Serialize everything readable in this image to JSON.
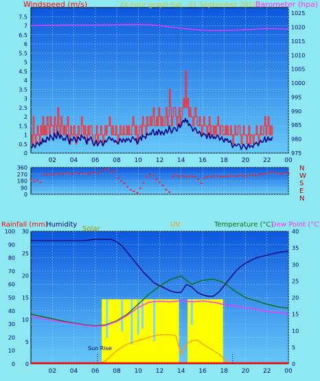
{
  "colors": {
    "background": "#8de8f2",
    "plot_top": "#0d58e0",
    "plot_bottom": "#66c8f8",
    "grid": "#9fd0ff",
    "wind_avg": "#000080",
    "wind_gust": "#ff2a2a",
    "barometer": "#ff33ff",
    "wind_dir": "#ff2020",
    "compass": "#b00000",
    "humidity": "#0a0a80",
    "solar_fill": "#ffff00",
    "solar_line": "#ffff00",
    "uv": "#ff9900",
    "temperature": "#107010",
    "dew_point": "#ff33ff",
    "rainfall": "#ff0000",
    "sun_marker": "#000000"
  },
  "header": {
    "title": "24 hour graph Sat , 01 September 2012",
    "wind_label": "Windspeed (m/s)",
    "baro_label": "Barometer (hpa)",
    "rain_label": "Rainfall (mm)",
    "humidity_label": "Humidity",
    "solar_label": "Solar",
    "uv_label": "UV",
    "temp_label": "Temperature (°C)",
    "dew_label": "Dew Point (°C)",
    "sunrise_label": "Sun Rise"
  },
  "chart_data": [
    {
      "type": "line",
      "name": "wind-and-barometer",
      "x_range": [
        0,
        24
      ],
      "x_ticks": [
        "02",
        "04",
        "06",
        "08",
        "10",
        "12",
        "14",
        "16",
        "18",
        "20",
        "22",
        "00"
      ],
      "left_axis": {
        "label": "Windspeed (m/s)",
        "range": [
          0,
          8
        ],
        "ticks": [
          "0",
          "0.5",
          "1",
          "1.5",
          "2",
          "2.5",
          "3",
          "3.5",
          "4",
          "4.5",
          "5",
          "5.5",
          "6",
          "6.5",
          "7",
          "7.5"
        ]
      },
      "right_axis": {
        "label": "Barometer (hpa)",
        "range": [
          975,
          1027
        ],
        "ticks": [
          "975",
          "980",
          "985",
          "990",
          "995",
          "1000",
          "1005",
          "1010",
          "1015",
          "1020",
          "1025"
        ]
      },
      "series": [
        {
          "role": "barometer",
          "x": [
            0,
            2,
            4,
            6,
            8,
            10,
            11,
            12,
            13,
            14,
            15,
            16,
            17,
            18,
            19,
            20,
            21,
            22,
            23,
            24
          ],
          "y": [
            1020.6,
            1020.7,
            1020.8,
            1020.8,
            1020.9,
            1021.0,
            1020.9,
            1020.5,
            1020.0,
            1019.6,
            1019.2,
            1018.9,
            1018.8,
            1018.8,
            1018.9,
            1019.1,
            1019.3,
            1019.5,
            1019.4,
            1019.3
          ]
        },
        {
          "role": "gust",
          "hours_start": 0,
          "hours_step": 0.1,
          "y": [
            1.0,
            0.5,
            2.0,
            1.0,
            0.5,
            1.0,
            1.5,
            1.0,
            0.5,
            1.5,
            1.0,
            2.0,
            1.0,
            1.5,
            1.0,
            2.0,
            1.5,
            1.0,
            2.0,
            1.5,
            1.5,
            1.0,
            2.0,
            1.5,
            1.0,
            2.5,
            1.5,
            1.0,
            2.0,
            1.5,
            1.0,
            1.5,
            1.0,
            1.5,
            2.0,
            1.0,
            0.5,
            1.5,
            1.0,
            1.0,
            1.5,
            1.0,
            0.5,
            1.0,
            1.5,
            1.0,
            1.0,
            2.0,
            1.5,
            1.0,
            1.5,
            1.0,
            0.5,
            1.5,
            1.0,
            1.5,
            1.5,
            1.0,
            0.5,
            0.5,
            1.0,
            1.5,
            0.5,
            1.0,
            1.0,
            1.5,
            1.0,
            0.5,
            1.0,
            1.5,
            1.0,
            1.5,
            1.5,
            2.0,
            1.5,
            1.0,
            1.5,
            1.0,
            1.0,
            1.5,
            1.0,
            0.5,
            1.0,
            1.5,
            1.0,
            1.0,
            1.5,
            1.0,
            1.0,
            1.5,
            1.0,
            1.5,
            1.0,
            1.0,
            1.5,
            2.0,
            1.5,
            1.0,
            1.5,
            0.5,
            1.0,
            1.5,
            1.5,
            1.0,
            2.0,
            1.5,
            1.5,
            1.0,
            2.0,
            1.5,
            1.5,
            2.0,
            1.5,
            2.0,
            2.5,
            1.5,
            1.5,
            2.0,
            1.5,
            2.5,
            2.0,
            1.5,
            2.0,
            1.5,
            1.5,
            2.0,
            2.5,
            1.5,
            2.0,
            3.5,
            2.5,
            1.5,
            2.0,
            2.5,
            2.5,
            2.0,
            1.5,
            2.0,
            2.5,
            1.5,
            2.0,
            2.5,
            3.0,
            2.5,
            4.5,
            2.5,
            3.0,
            2.0,
            2.5,
            2.0,
            2.0,
            1.5,
            2.0,
            2.5,
            2.0,
            1.5,
            1.5,
            2.0,
            1.5,
            1.0,
            1.5,
            2.0,
            1.5,
            1.5,
            1.0,
            1.5,
            2.0,
            1.0,
            1.5,
            1.5,
            1.0,
            1.5,
            1.0,
            1.5,
            2.0,
            1.5,
            1.0,
            1.5,
            1.5,
            1.0,
            1.0,
            1.5,
            1.0,
            1.5,
            1.0,
            1.0,
            1.5,
            1.0,
            0.5,
            1.0,
            1.5,
            1.0,
            1.0,
            1.5,
            1.5,
            1.0,
            0.5,
            1.0,
            1.5,
            1.0,
            1.0,
            0.5,
            1.0,
            1.5,
            0.5,
            1.0,
            1.0,
            0.5,
            1.0,
            1.0,
            1.5,
            1.0,
            0.5,
            1.0,
            1.5,
            1.0,
            1.0,
            1.5,
            2.0,
            1.0,
            1.5,
            2.0,
            1.0,
            1.5,
            1.0,
            1.5
          ]
        },
        {
          "role": "average",
          "hours_start": 0,
          "hours_step": 0.1,
          "y": [
            0.3,
            0.3,
            0.5,
            0.4,
            0.3,
            0.5,
            0.6,
            0.5,
            0.4,
            0.6,
            0.5,
            0.8,
            0.6,
            0.7,
            0.6,
            0.9,
            0.8,
            0.7,
            1.0,
            0.9,
            0.8,
            0.7,
            1.1,
            0.9,
            0.8,
            1.2,
            1.0,
            0.8,
            1.0,
            0.9,
            0.7,
            0.8,
            0.7,
            0.9,
            1.0,
            0.7,
            0.5,
            0.8,
            0.7,
            0.7,
            0.9,
            0.8,
            0.6,
            0.7,
            0.9,
            0.8,
            0.7,
            1.0,
            0.9,
            0.8,
            0.9,
            0.7,
            0.5,
            0.8,
            0.7,
            0.8,
            0.9,
            0.7,
            0.5,
            0.4,
            0.6,
            0.7,
            0.4,
            0.5,
            0.6,
            0.7,
            0.6,
            0.4,
            0.5,
            0.7,
            0.6,
            0.7,
            0.8,
            0.9,
            0.8,
            0.7,
            0.8,
            0.7,
            0.6,
            0.7,
            0.6,
            0.5,
            0.6,
            0.8,
            0.7,
            0.6,
            0.8,
            0.7,
            0.6,
            0.8,
            0.7,
            0.8,
            0.7,
            0.6,
            0.8,
            0.9,
            0.8,
            0.7,
            0.8,
            0.5,
            0.6,
            0.8,
            0.9,
            0.7,
            1.0,
            0.9,
            0.9,
            0.8,
            1.1,
            1.0,
            1.0,
            1.1,
            1.0,
            1.2,
            1.3,
            1.0,
            1.0,
            1.2,
            1.0,
            1.3,
            1.2,
            1.0,
            1.2,
            1.1,
            1.0,
            1.2,
            1.3,
            1.1,
            1.2,
            1.5,
            1.3,
            1.1,
            1.2,
            1.4,
            1.4,
            1.3,
            1.2,
            1.4,
            1.6,
            1.4,
            1.5,
            1.7,
            1.8,
            1.7,
            1.9,
            1.7,
            1.8,
            1.5,
            1.6,
            1.5,
            1.4,
            1.2,
            1.3,
            1.4,
            1.3,
            1.1,
            1.1,
            1.2,
            1.1,
            0.9,
            1.0,
            1.1,
            1.0,
            1.0,
            0.8,
            1.0,
            1.1,
            0.8,
            0.9,
            1.0,
            0.8,
            0.9,
            0.8,
            0.9,
            1.0,
            0.9,
            0.7,
            0.8,
            0.9,
            0.7,
            0.6,
            0.8,
            0.7,
            0.8,
            0.6,
            0.6,
            0.7,
            0.5,
            0.3,
            0.4,
            0.5,
            0.4,
            0.4,
            0.5,
            0.5,
            0.4,
            0.2,
            0.3,
            0.5,
            0.4,
            0.3,
            0.2,
            0.4,
            0.5,
            0.3,
            0.4,
            0.4,
            0.3,
            0.5,
            0.5,
            0.6,
            0.5,
            0.4,
            0.6,
            0.7,
            0.6,
            0.6,
            0.7,
            0.9,
            0.6,
            0.7,
            0.9,
            0.7,
            0.8,
            0.7,
            0.9
          ]
        }
      ]
    },
    {
      "type": "scatter",
      "name": "wind-direction",
      "x_range": [
        0,
        24
      ],
      "y_range": [
        0,
        360
      ],
      "y_ticks": [
        "0",
        "90",
        "180",
        "270",
        "360"
      ],
      "compass": [
        "N",
        "W",
        "S",
        "E",
        "N"
      ],
      "series": [
        {
          "role": "direction",
          "x": [
            0.0,
            0.3,
            0.6,
            0.9,
            1.2,
            1.5,
            1.8,
            2.1,
            2.4,
            2.7,
            3.0,
            3.3,
            3.6,
            3.9,
            4.2,
            4.5,
            4.8,
            5.1,
            5.4,
            5.7,
            6.0,
            6.3,
            6.6,
            6.9,
            7.2,
            7.5,
            7.8,
            8.1,
            8.4,
            8.7,
            9.0,
            9.3,
            9.6,
            9.9,
            10.2,
            10.5,
            10.8,
            11.1,
            11.4,
            11.7,
            12.0,
            12.3,
            12.6,
            12.9,
            13.2,
            13.5,
            13.8,
            14.1,
            14.4,
            14.7,
            15.0,
            15.3,
            15.6,
            15.9,
            16.2,
            16.5,
            16.8,
            17.1,
            17.4,
            17.7,
            18.0,
            18.3,
            18.6,
            18.9,
            19.2,
            19.5,
            19.8,
            20.1,
            20.4,
            20.7,
            21.0,
            21.3,
            21.6,
            21.9,
            22.2,
            22.5,
            22.8,
            23.1,
            23.4,
            23.7,
            24.0
          ],
          "y": [
            200,
            170,
            190,
            160,
            275,
            260,
            270,
            265,
            280,
            275,
            270,
            285,
            280,
            270,
            290,
            275,
            285,
            280,
            270,
            290,
            300,
            275,
            320,
            330,
            340,
            290,
            310,
            220,
            180,
            150,
            100,
            60,
            40,
            20,
            80,
            150,
            230,
            270,
            250,
            200,
            160,
            120,
            60,
            30,
            230,
            260,
            240,
            250,
            230,
            245,
            240,
            235,
            200,
            150,
            220,
            240,
            230,
            250,
            245,
            240,
            235,
            240,
            250,
            245,
            240,
            255,
            250,
            245,
            260,
            255,
            250,
            265,
            270,
            275,
            290,
            300,
            285,
            280,
            270,
            290,
            280
          ]
        }
      ]
    },
    {
      "type": "line",
      "name": "rain-humidity-solar-uv-temperature",
      "x_range": [
        0,
        24
      ],
      "x_ticks": [
        "02",
        "04",
        "06",
        "08",
        "10",
        "12",
        "14",
        "16",
        "18",
        "20",
        "22",
        "00"
      ],
      "humidity_axis": {
        "range": [
          0,
          100
        ],
        "ticks": [
          "0",
          "10",
          "20",
          "30",
          "40",
          "50",
          "60",
          "70",
          "80",
          "90",
          "100"
        ]
      },
      "rain_axis": {
        "range": [
          0,
          30
        ],
        "ticks": [
          "0",
          "5",
          "10",
          "15",
          "20",
          "25",
          "30"
        ]
      },
      "temp_axis": {
        "range": [
          0,
          40
        ],
        "ticks": [
          "0",
          "5",
          "10",
          "15",
          "20",
          "25",
          "30",
          "35",
          "40"
        ]
      },
      "series": [
        {
          "role": "humidity",
          "x": [
            0,
            1,
            2,
            3,
            4,
            5,
            6,
            7,
            7.5,
            8,
            8.5,
            9,
            9.5,
            10,
            10.5,
            11,
            11.5,
            12,
            12.5,
            13,
            13.5,
            14,
            14.5,
            15,
            15.5,
            16,
            16.5,
            17,
            17.5,
            18,
            18.5,
            19,
            19.5,
            20,
            20.5,
            21,
            22,
            23,
            24
          ],
          "y": [
            93,
            93,
            93,
            93,
            93,
            93,
            94,
            94,
            94,
            92,
            89,
            84,
            79,
            74,
            69,
            65,
            61,
            59,
            57,
            55,
            54,
            54,
            60,
            58,
            54,
            52,
            51,
            51,
            54,
            59,
            64,
            69,
            73,
            76,
            78,
            80,
            82,
            84,
            85
          ]
        },
        {
          "role": "temperature",
          "x": [
            0,
            1,
            2,
            3,
            4,
            5,
            6,
            7,
            8,
            9,
            10,
            11,
            12,
            13,
            14,
            15,
            16,
            17,
            18,
            19,
            20,
            21,
            22,
            23,
            24
          ],
          "y": [
            15,
            14.3,
            13.6,
            12.9,
            12.3,
            11.8,
            11.5,
            11.8,
            13,
            15,
            18,
            21,
            23.5,
            25.5,
            26.5,
            24,
            25.2,
            25.6,
            24.5,
            22,
            20,
            19,
            18,
            17.2,
            16.8
          ]
        },
        {
          "role": "dew_point",
          "x": [
            0,
            1,
            2,
            3,
            4,
            5,
            6,
            7,
            8,
            9,
            10,
            11,
            12,
            13,
            14,
            15,
            16,
            17,
            18,
            19,
            20,
            21,
            22,
            23,
            24
          ],
          "y": [
            14.3,
            13.7,
            13.1,
            12.6,
            12.1,
            11.6,
            11.3,
            11.6,
            12.8,
            14.7,
            17,
            18.6,
            18.9,
            18.7,
            19.1,
            18.7,
            19.0,
            18.6,
            17.9,
            17.4,
            16.9,
            16.4,
            15.9,
            15.5,
            15.1
          ]
        },
        {
          "role": "solar_uv_scaled",
          "x": [
            6.3,
            7,
            7.5,
            8,
            8.5,
            9,
            9.5,
            10,
            10.5,
            11,
            11.5,
            12,
            12.5,
            13,
            13.5,
            14,
            14.5,
            15,
            15.5,
            16,
            16.5,
            17,
            17.5,
            18,
            18.5
          ],
          "y": [
            0,
            1,
            2.5,
            4,
            5,
            6,
            6.5,
            7,
            7.5,
            8,
            8.5,
            8.7,
            8.8,
            8.8,
            8.5,
            3,
            6,
            7,
            7.2,
            6,
            5,
            4,
            3,
            1.5,
            0
          ]
        },
        {
          "role": "rainfall",
          "x": [
            0,
            24
          ],
          "y": [
            0,
            0
          ]
        }
      ],
      "sunrise_hour": 6.2,
      "sunset_hour": 18.8
    }
  ]
}
